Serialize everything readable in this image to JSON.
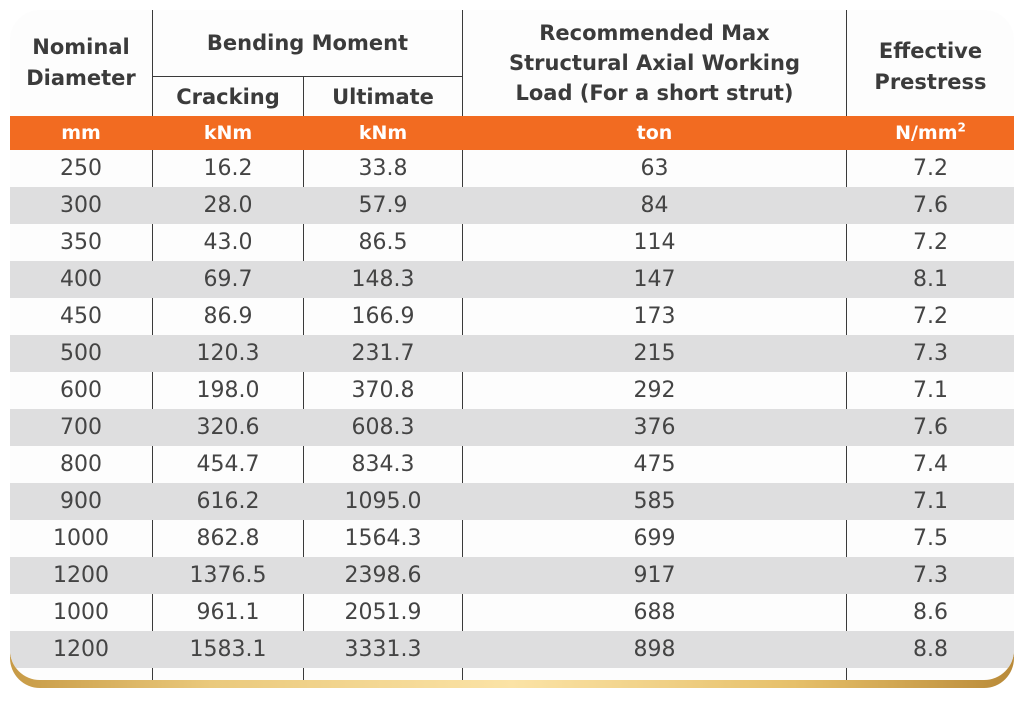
{
  "header": {
    "nominal_diameter": "Nominal\nDiameter",
    "bending_moment": "Bending Moment",
    "cracking": "Cracking",
    "ultimate": "Ultimate",
    "axial_load": "Recommended Max\nStructural Axial Working\nLoad (For a short strut)",
    "effective_prestress": "Effective\nPrestress"
  },
  "units": {
    "diameter": "mm",
    "cracking": "kNm",
    "ultimate": "kNm",
    "load": "ton",
    "prestress_base": "N/mm",
    "prestress_exp": "2"
  },
  "rows": [
    {
      "diameter": "250",
      "cracking": "16.2",
      "ultimate": "33.8",
      "load": "63",
      "prestress": "7.2"
    },
    {
      "diameter": "300",
      "cracking": "28.0",
      "ultimate": "57.9",
      "load": "84",
      "prestress": "7.6"
    },
    {
      "diameter": "350",
      "cracking": "43.0",
      "ultimate": "86.5",
      "load": "114",
      "prestress": "7.2"
    },
    {
      "diameter": "400",
      "cracking": "69.7",
      "ultimate": "148.3",
      "load": "147",
      "prestress": "8.1"
    },
    {
      "diameter": "450",
      "cracking": "86.9",
      "ultimate": "166.9",
      "load": "173",
      "prestress": "7.2"
    },
    {
      "diameter": "500",
      "cracking": "120.3",
      "ultimate": "231.7",
      "load": "215",
      "prestress": "7.3"
    },
    {
      "diameter": "600",
      "cracking": "198.0",
      "ultimate": "370.8",
      "load": "292",
      "prestress": "7.1"
    },
    {
      "diameter": "700",
      "cracking": "320.6",
      "ultimate": "608.3",
      "load": "376",
      "prestress": "7.6"
    },
    {
      "diameter": "800",
      "cracking": "454.7",
      "ultimate": "834.3",
      "load": "475",
      "prestress": "7.4"
    },
    {
      "diameter": "900",
      "cracking": "616.2",
      "ultimate": "1095.0",
      "load": "585",
      "prestress": "7.1"
    },
    {
      "diameter": "1000",
      "cracking": "862.8",
      "ultimate": "1564.3",
      "load": "699",
      "prestress": "7.5"
    },
    {
      "diameter": "1200",
      "cracking": "1376.5",
      "ultimate": "2398.6",
      "load": "917",
      "prestress": "7.3"
    },
    {
      "diameter": "1000",
      "cracking": "961.1",
      "ultimate": "2051.9",
      "load": "688",
      "prestress": "8.6"
    },
    {
      "diameter": "1200",
      "cracking": "1583.1",
      "ultimate": "3331.3",
      "load": "898",
      "prestress": "8.8"
    }
  ],
  "colors": {
    "unit_bar": "#f26b21",
    "row_alt": "#dededf",
    "text": "#444444",
    "frame": "#e6c06a"
  }
}
